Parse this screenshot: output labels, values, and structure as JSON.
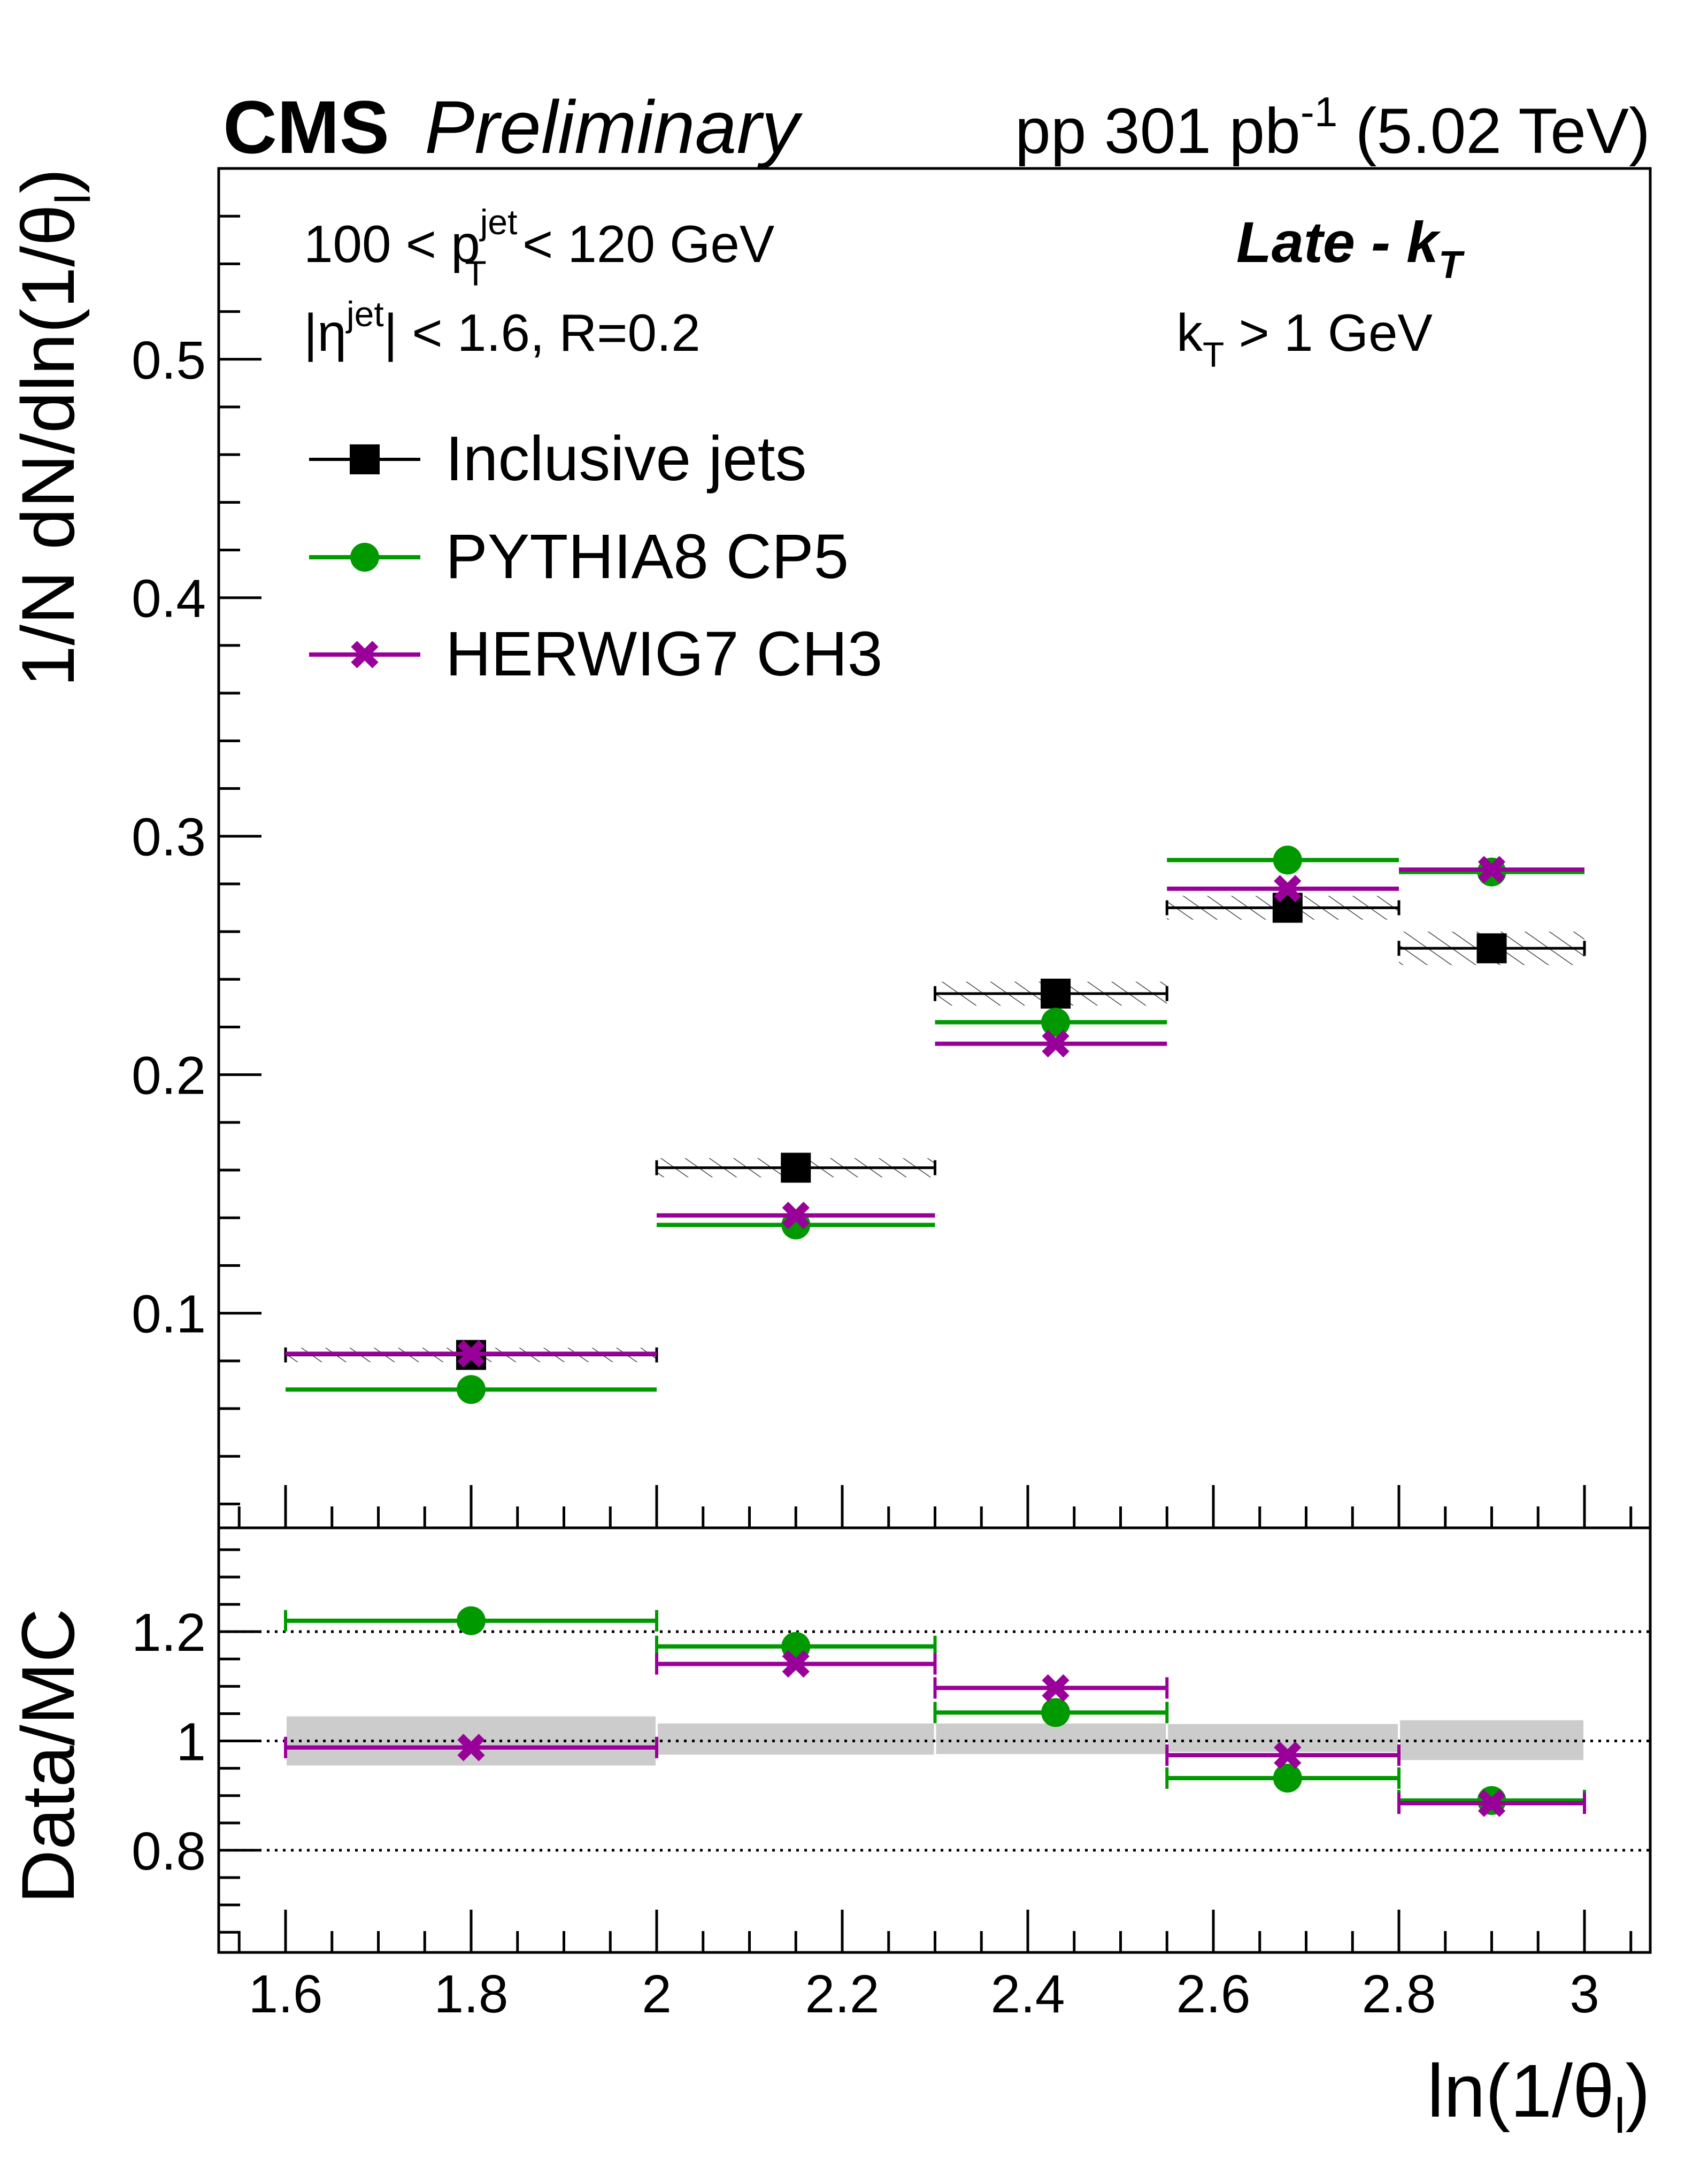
{
  "header": {
    "experiment": "CMS",
    "status": "Preliminary",
    "lumi_prefix": "pp 301 pb",
    "lumi_exp": "-1",
    "lumi_suffix": " (5.02 TeV)"
  },
  "annotations": {
    "pt_left": "100 < p",
    "pt_sub": "T",
    "pt_sup": "jet",
    "pt_right": " < 120 GeV",
    "eta_left": "|η",
    "eta_sup": "jet",
    "eta_right": "| < 1.6, R=0.2",
    "algo_main": "Late - k",
    "algo_sub": "T",
    "kt_main": "k",
    "kt_sub": "T",
    "kt_right": " > 1 GeV"
  },
  "chart_data": [
    {
      "type": "scatter",
      "panel": "main",
      "ylabel": "1/N dN/dln(1/θ",
      "ylabel_sub": "l",
      "ylabel_end": ")",
      "xlim": [
        1.53,
        3.07
      ],
      "ylim": [
        0.01,
        0.58
      ],
      "yticks": [
        0.1,
        0.2,
        0.3,
        0.4,
        0.5
      ],
      "ytick_labels": [
        "0.1",
        "0.2",
        "0.3",
        "0.4",
        "0.5"
      ],
      "bin_edges": [
        1.6,
        2.0,
        2.3,
        2.55,
        2.8,
        3.0
      ],
      "x": [
        1.8,
        2.15,
        2.43,
        2.68,
        2.9
      ],
      "legend_position": "top-left",
      "series": [
        {
          "name": "Inclusive jets",
          "color": "#000000",
          "marker": "square",
          "values": [
            0.0825,
            0.161,
            0.234,
            0.27,
            0.253
          ],
          "syst": [
            0.003,
            0.004,
            0.005,
            0.005,
            0.007
          ]
        },
        {
          "name": "PYTHIA8 CP5",
          "color": "#009900",
          "marker": "circle",
          "values": [
            0.068,
            0.137,
            0.222,
            0.29,
            0.285
          ]
        },
        {
          "name": "HERWIG7 CH3",
          "color": "#990099",
          "marker": "x",
          "values": [
            0.083,
            0.141,
            0.213,
            0.278,
            0.286
          ]
        }
      ]
    },
    {
      "type": "scatter",
      "panel": "ratio",
      "ylabel": "Data/MC",
      "xlabel": "ln(1/θ",
      "xlabel_sub": "l",
      "xlabel_end": ")",
      "xlim": [
        1.53,
        3.07
      ],
      "ylim": [
        0.613,
        1.39
      ],
      "yticks": [
        0.8,
        1.0,
        1.2
      ],
      "ytick_labels": [
        "0.8",
        "1",
        "1.2"
      ],
      "xticks": [
        1.6,
        1.8,
        2.0,
        2.2,
        2.4,
        2.6,
        2.8,
        3.0
      ],
      "xtick_labels": [
        "1.6",
        "1.8",
        "2",
        "2.2",
        "2.4",
        "2.6",
        "2.8",
        "3"
      ],
      "reference_lines": [
        0.8,
        1.0,
        1.2
      ],
      "bin_edges": [
        1.6,
        2.0,
        2.3,
        2.55,
        2.8,
        3.0
      ],
      "x": [
        1.8,
        2.15,
        2.43,
        2.68,
        2.9
      ],
      "uncertainty_band": {
        "color": "#cccccc",
        "low": [
          0.955,
          0.975,
          0.976,
          0.98,
          0.965
        ],
        "high": [
          1.045,
          1.032,
          1.032,
          1.031,
          1.038
        ]
      },
      "series": [
        {
          "name": "PYTHIA8 CP5",
          "color": "#009900",
          "marker": "circle",
          "values": [
            1.22,
            1.173,
            1.052,
            0.932,
            0.891
          ]
        },
        {
          "name": "HERWIG7 CH3",
          "color": "#990099",
          "marker": "x",
          "values": [
            0.988,
            1.141,
            1.097,
            0.974,
            0.886
          ]
        }
      ]
    }
  ]
}
